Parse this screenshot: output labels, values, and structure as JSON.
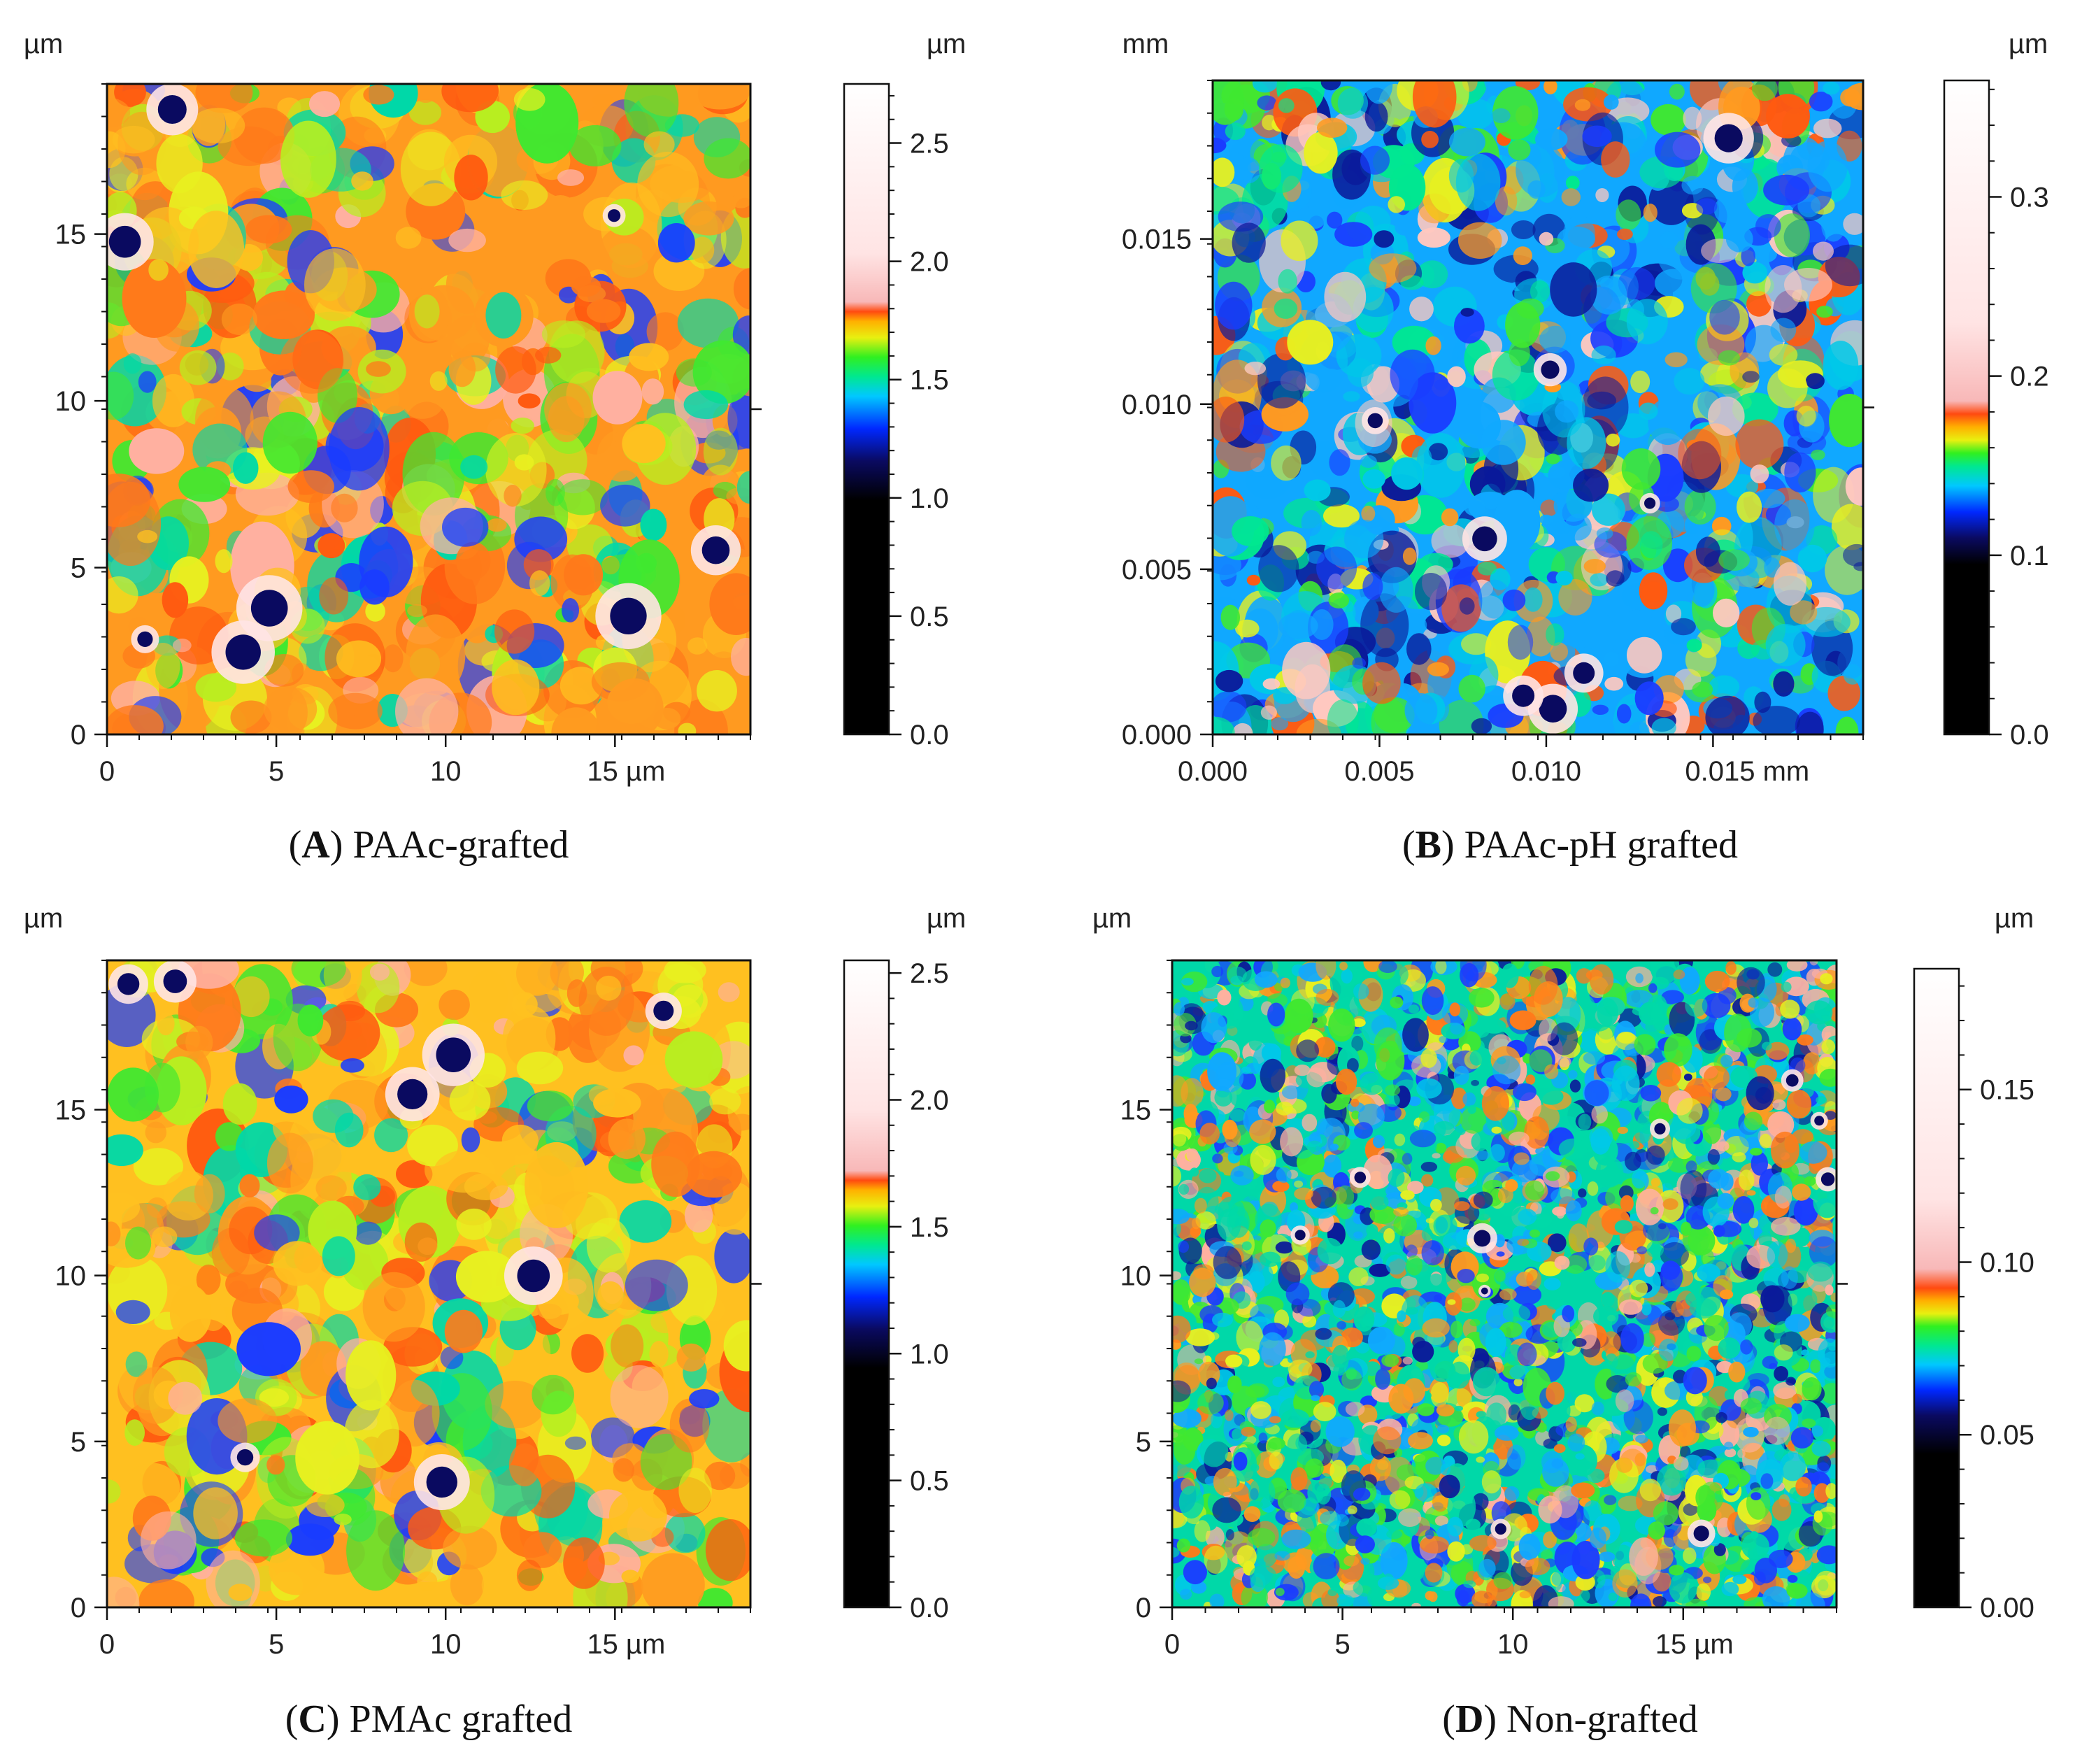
{
  "figure": {
    "type": "afm_height_maps",
    "panel_count": 4
  },
  "colors": {
    "frame": "#111111",
    "text": "#222222",
    "colormap": [
      "#000000",
      "#000000",
      "#0a0a60",
      "#0028ff",
      "#00c8ff",
      "#00e890",
      "#30f020",
      "#e8f010",
      "#ffb000",
      "#ff4a10",
      "#f8b8b8",
      "#ffe4e4",
      "#ffffff"
    ]
  },
  "chart_data": [
    {
      "type": "heatmap",
      "id": "A",
      "caption": {
        "letter": "A",
        "text": ") PAAc-grafted",
        "open": "("
      },
      "axis_unit_label": "µm",
      "colorbar_unit_label": "µm",
      "x_ticks": [
        "0",
        "5",
        "10",
        "15 µm"
      ],
      "x_values": [
        0,
        5,
        10,
        15
      ],
      "xlim": [
        0,
        19
      ],
      "y_ticks": [
        "0",
        "5",
        "10",
        "15"
      ],
      "y_values": [
        0,
        5,
        10,
        15
      ],
      "ylim": [
        0,
        19.5
      ],
      "colorbar_ticks": [
        "0.0",
        "0.5",
        "1.0",
        "1.5",
        "2.0",
        "2.5"
      ],
      "colorbar_values": [
        0.0,
        0.5,
        1.0,
        1.5,
        2.0,
        2.5
      ],
      "colorbar_range": [
        0,
        2.75
      ],
      "colorbar_stops": [
        [
          0.0,
          "#000000"
        ],
        [
          0.36,
          "#000000"
        ],
        [
          0.42,
          "#0a0a60"
        ],
        [
          0.47,
          "#0028ff"
        ],
        [
          0.52,
          "#00c8ff"
        ],
        [
          0.55,
          "#00e890"
        ],
        [
          0.58,
          "#30f020"
        ],
        [
          0.61,
          "#e8f010"
        ],
        [
          0.635,
          "#ffb000"
        ],
        [
          0.65,
          "#ff4a10"
        ],
        [
          0.665,
          "#f8b8b8"
        ],
        [
          0.74,
          "#ffe4e4"
        ],
        [
          1.0,
          "#ffffff"
        ]
      ],
      "surface_palette": [
        "#ff9a20",
        "#ffc020",
        "#ff7a1a",
        "#b8ee20",
        "#e8f020",
        "#40e830",
        "#00d8a8",
        "#ff5a10",
        "#ffb0a0",
        "#1a3cff"
      ],
      "surface_seed": 11,
      "surface_grain": 26
    },
    {
      "type": "heatmap",
      "id": "B",
      "caption": {
        "letter": "B",
        "text": ") PAAc-pH grafted",
        "open": "("
      },
      "axis_unit_label": "mm",
      "colorbar_unit_label": "µm",
      "x_ticks": [
        "0.000",
        "0.005",
        "0.010",
        "0.015 mm"
      ],
      "x_values": [
        0.0,
        0.005,
        0.01,
        0.015
      ],
      "xlim": [
        0,
        0.0195
      ],
      "y_ticks": [
        "0.000",
        "0.005",
        "0.010",
        "0.015"
      ],
      "y_values": [
        0.0,
        0.005,
        0.01,
        0.015
      ],
      "ylim": [
        0,
        0.0198
      ],
      "colorbar_ticks": [
        "0.0",
        "0.1",
        "0.2",
        "0.3"
      ],
      "colorbar_values": [
        0.0,
        0.1,
        0.2,
        0.3
      ],
      "colorbar_range": [
        0,
        0.365
      ],
      "colorbar_stops": [
        [
          0.0,
          "#000000"
        ],
        [
          0.26,
          "#000000"
        ],
        [
          0.3,
          "#0a0a60"
        ],
        [
          0.34,
          "#0028ff"
        ],
        [
          0.38,
          "#00c8ff"
        ],
        [
          0.41,
          "#00e890"
        ],
        [
          0.43,
          "#30f020"
        ],
        [
          0.45,
          "#e8f010"
        ],
        [
          0.47,
          "#ffb000"
        ],
        [
          0.49,
          "#ff4a10"
        ],
        [
          0.51,
          "#f8b8b8"
        ],
        [
          0.63,
          "#ffe4e4"
        ],
        [
          1.0,
          "#ffffff"
        ]
      ],
      "surface_palette": [
        "#10a8ff",
        "#00c8e8",
        "#1a3cff",
        "#0a1a9a",
        "#00e890",
        "#40e830",
        "#e8f020",
        "#ff9a20",
        "#ff5a10",
        "#ffc8c0"
      ],
      "surface_seed": 23,
      "surface_grain": 34
    },
    {
      "type": "heatmap",
      "id": "C",
      "caption": {
        "letter": "C",
        "text": ") PMAc grafted",
        "open": "("
      },
      "axis_unit_label": "µm",
      "colorbar_unit_label": "µm",
      "x_ticks": [
        "0",
        "5",
        "10",
        "15 µm"
      ],
      "x_values": [
        0,
        5,
        10,
        15
      ],
      "xlim": [
        0,
        19
      ],
      "y_ticks": [
        "0",
        "5",
        "10",
        "15"
      ],
      "y_values": [
        0,
        5,
        10,
        15
      ],
      "ylim": [
        0,
        19.5
      ],
      "colorbar_ticks": [
        "0.0",
        "0.5",
        "1.0",
        "1.5",
        "2.0",
        "2.5"
      ],
      "colorbar_values": [
        0.0,
        0.5,
        1.0,
        1.5,
        2.0,
        2.5
      ],
      "colorbar_range": [
        0,
        2.55
      ],
      "colorbar_stops": [
        [
          0.0,
          "#000000"
        ],
        [
          0.37,
          "#000000"
        ],
        [
          0.43,
          "#0a0a60"
        ],
        [
          0.48,
          "#0028ff"
        ],
        [
          0.53,
          "#00c8ff"
        ],
        [
          0.56,
          "#00e890"
        ],
        [
          0.59,
          "#30f020"
        ],
        [
          0.62,
          "#e8f010"
        ],
        [
          0.645,
          "#ffb000"
        ],
        [
          0.66,
          "#ff4a10"
        ],
        [
          0.675,
          "#f8b8b8"
        ],
        [
          0.77,
          "#ffe4e4"
        ],
        [
          1.0,
          "#ffffff"
        ]
      ],
      "surface_palette": [
        "#ffc020",
        "#ff9a20",
        "#e8f020",
        "#ff7a1a",
        "#b8ee20",
        "#40e830",
        "#00d8a8",
        "#ff5a10",
        "#ffb0a0",
        "#1a3cff"
      ],
      "surface_seed": 37,
      "surface_grain": 26
    },
    {
      "type": "heatmap",
      "id": "D",
      "caption": {
        "letter": "D",
        "text": ") Non-grafted",
        "open": "("
      },
      "axis_unit_label": "µm",
      "colorbar_unit_label": "µm",
      "x_ticks": [
        "0",
        "5",
        "10",
        "15 µm"
      ],
      "x_values": [
        0,
        5,
        10,
        15
      ],
      "xlim": [
        0,
        19.5
      ],
      "y_ticks": [
        "0",
        "5",
        "10",
        "15"
      ],
      "y_values": [
        0,
        5,
        10,
        15
      ],
      "ylim": [
        0,
        19.5
      ],
      "colorbar_ticks": [
        "0.00",
        "0.05",
        "0.10",
        "0.15"
      ],
      "colorbar_values": [
        0.0,
        0.05,
        0.1,
        0.15
      ],
      "colorbar_range": [
        0,
        0.185
      ],
      "colorbar_stops": [
        [
          0.0,
          "#000000"
        ],
        [
          0.24,
          "#000000"
        ],
        [
          0.3,
          "#0a0a60"
        ],
        [
          0.34,
          "#0028ff"
        ],
        [
          0.38,
          "#00c8ff"
        ],
        [
          0.41,
          "#00e890"
        ],
        [
          0.44,
          "#30f020"
        ],
        [
          0.46,
          "#e8f010"
        ],
        [
          0.48,
          "#ffb000"
        ],
        [
          0.5,
          "#ff4a10"
        ],
        [
          0.53,
          "#f8b8b8"
        ],
        [
          0.64,
          "#ffe4e4"
        ],
        [
          1.0,
          "#ffffff"
        ]
      ],
      "surface_palette": [
        "#00d8a8",
        "#40e830",
        "#1a3cff",
        "#10a8ff",
        "#e8f020",
        "#ff9a20",
        "#ff7a1a",
        "#00c8e8",
        "#ffb0a0",
        "#0a1a9a"
      ],
      "surface_seed": 53,
      "surface_grain": 58
    }
  ]
}
